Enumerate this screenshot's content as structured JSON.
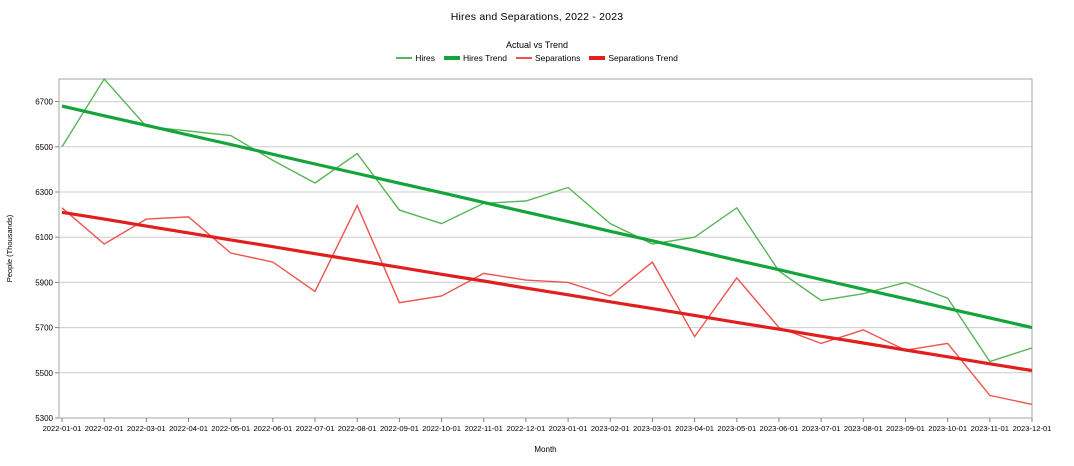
{
  "chart_data": {
    "type": "line",
    "title": "Hires and Separations, 2022 - 2023",
    "subtitle": "Actual vs Trend",
    "xlabel": "Month",
    "ylabel": "People (Thousands)",
    "categories": [
      "2022-01-01",
      "2022-02-01",
      "2022-03-01",
      "2022-04-01",
      "2022-05-01",
      "2022-06-01",
      "2022-07-01",
      "2022-08-01",
      "2022-09-01",
      "2022-10-01",
      "2022-11-01",
      "2022-12-01",
      "2023-01-01",
      "2023-02-01",
      "2023-03-01",
      "2023-04-01",
      "2023-05-01",
      "2023-06-01",
      "2023-07-01",
      "2023-08-01",
      "2023-09-01",
      "2023-10-01",
      "2023-11-01",
      "2023-12-01"
    ],
    "series": [
      {
        "name": "Hires",
        "color": "#5ab55a",
        "width": 1.4,
        "values": [
          6500,
          6800,
          6590,
          6570,
          6550,
          6440,
          6340,
          6470,
          6220,
          6160,
          6250,
          6260,
          6320,
          6160,
          6070,
          6100,
          6230,
          5950,
          5820,
          5850,
          5900,
          5830,
          5550,
          5610
        ]
      },
      {
        "name": "Hires Trend",
        "color": "#15a33c",
        "width": 3.2,
        "values": [
          6680,
          6637,
          6595,
          6552,
          6510,
          6467,
          6424,
          6382,
          6339,
          6297,
          6254,
          6211,
          6169,
          6126,
          6084,
          6041,
          5998,
          5956,
          5913,
          5870,
          5828,
          5785,
          5743,
          5700
        ]
      },
      {
        "name": "Separations",
        "color": "#ef5350",
        "width": 1.4,
        "values": [
          6230,
          6070,
          6180,
          6190,
          6030,
          5990,
          5860,
          6240,
          5810,
          5840,
          5940,
          5910,
          5900,
          5840,
          5990,
          5660,
          5920,
          5700,
          5630,
          5690,
          5600,
          5630,
          5400,
          5360
        ]
      },
      {
        "name": "Separations Trend",
        "color": "#e01f1f",
        "width": 3.2,
        "values": [
          6210,
          6180,
          6149,
          6119,
          6088,
          6058,
          6027,
          5997,
          5967,
          5936,
          5906,
          5875,
          5845,
          5814,
          5784,
          5754,
          5723,
          5693,
          5662,
          5632,
          5601,
          5571,
          5540,
          5510
        ]
      }
    ],
    "ylim": [
      5300,
      6800
    ],
    "yticks": [
      5300,
      5500,
      5700,
      5900,
      6100,
      6300,
      6500,
      6700
    ],
    "grid": true,
    "legend_position": "top",
    "colors": {
      "gridline": "#cccccc",
      "plot_border": "#a6a6a6",
      "tick": "#808080",
      "text": "#000000",
      "background": "#ffffff"
    }
  }
}
